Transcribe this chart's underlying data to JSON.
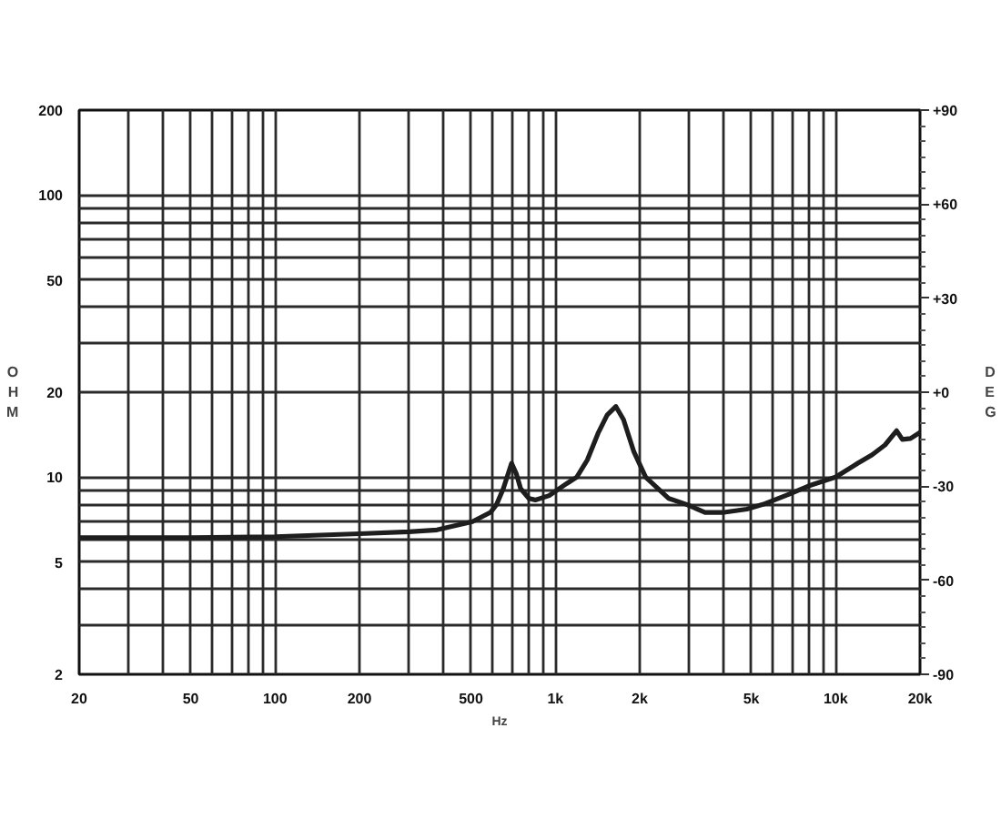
{
  "chart_data": {
    "type": "line",
    "xlabel": "Hz",
    "ylabel": "OHM",
    "y2label": "DEG",
    "log": "xy",
    "grid": true,
    "line_style": "solid",
    "xlim": [
      20,
      20000
    ],
    "ylim": [
      2,
      200
    ],
    "y2lim": [
      -90,
      90
    ],
    "xticks": [
      20,
      {
        "value": 30,
        "label": null
      },
      {
        "value": 40,
        "label": null
      },
      50,
      {
        "value": 60,
        "label": null
      },
      {
        "value": 70,
        "label": null
      },
      {
        "value": 80,
        "label": null
      },
      {
        "value": 90,
        "label": null
      },
      100,
      200,
      {
        "value": 300,
        "label": null
      },
      {
        "value": 400,
        "label": null
      },
      500,
      {
        "value": 600,
        "label": null
      },
      {
        "value": 700,
        "label": null
      },
      {
        "value": 800,
        "label": null
      },
      {
        "value": 900,
        "label": null
      },
      {
        "value": 1000,
        "label": "1k"
      },
      {
        "value": 2000,
        "label": "2k"
      },
      {
        "value": 3000,
        "label": null
      },
      {
        "value": 4000,
        "label": null
      },
      {
        "value": 5000,
        "label": "5k"
      },
      {
        "value": 6000,
        "label": null
      },
      {
        "value": 7000,
        "label": null
      },
      {
        "value": 8000,
        "label": null
      },
      {
        "value": 9000,
        "label": null
      },
      {
        "value": 10000,
        "label": "10k"
      },
      {
        "value": 20000,
        "label": "20k"
      }
    ],
    "yticks": [
      2,
      {
        "value": 3,
        "label": null
      },
      {
        "value": 4,
        "label": null
      },
      5,
      {
        "value": 6,
        "label": null
      },
      {
        "value": 7,
        "label": null
      },
      {
        "value": 8,
        "label": null
      },
      {
        "value": 9,
        "label": null
      },
      10,
      20,
      {
        "value": 30,
        "label": null
      },
      {
        "value": 40,
        "label": null
      },
      50,
      {
        "value": 60,
        "label": null
      },
      {
        "value": 70,
        "label": null
      },
      {
        "value": 80,
        "label": null
      },
      {
        "value": 90,
        "label": null
      },
      100,
      200
    ],
    "y2ticks": [
      {
        "value": -90,
        "label": "-90"
      },
      {
        "value": -85,
        "label": null
      },
      {
        "value": -80,
        "label": null
      },
      {
        "value": -75,
        "label": null
      },
      {
        "value": -70,
        "label": null
      },
      {
        "value": -65,
        "label": null
      },
      {
        "value": -60,
        "label": "-60"
      },
      {
        "value": -55,
        "label": null
      },
      {
        "value": -50,
        "label": null
      },
      {
        "value": -45,
        "label": null
      },
      {
        "value": -40,
        "label": null
      },
      {
        "value": -35,
        "label": null
      },
      {
        "value": -30,
        "label": "-30"
      },
      {
        "value": -25,
        "label": null
      },
      {
        "value": -20,
        "label": null
      },
      {
        "value": -15,
        "label": null
      },
      {
        "value": -10,
        "label": null
      },
      {
        "value": -5,
        "label": null
      },
      {
        "value": 0,
        "label": "+0"
      },
      {
        "value": 5,
        "label": null
      },
      {
        "value": 10,
        "label": null
      },
      {
        "value": 15,
        "label": null
      },
      {
        "value": 20,
        "label": null
      },
      {
        "value": 25,
        "label": null
      },
      {
        "value": 30,
        "label": "+30"
      },
      {
        "value": 35,
        "label": null
      },
      {
        "value": 40,
        "label": null
      },
      {
        "value": 45,
        "label": null
      },
      {
        "value": 50,
        "label": null
      },
      {
        "value": 55,
        "label": null
      },
      {
        "value": 60,
        "label": "+60"
      },
      {
        "value": 65,
        "label": null
      },
      {
        "value": 70,
        "label": null
      },
      {
        "value": 75,
        "label": null
      },
      {
        "value": 80,
        "label": null
      },
      {
        "value": 85,
        "label": null
      },
      {
        "value": 90,
        "label": "+90"
      }
    ],
    "x": [
      20,
      50,
      100,
      200,
      300,
      378,
      506,
      587,
      617,
      652,
      698,
      725,
      752,
      805,
      848,
      950,
      1100,
      1192,
      1300,
      1420,
      1530,
      1644,
      1750,
      1906,
      2100,
      2540,
      2940,
      3420,
      4000,
      4820,
      5500,
      6820,
      8000,
      10000,
      12000,
      13500,
      15000,
      16500,
      17300,
      18500,
      20000
    ],
    "series": [
      {
        "color": "#1e1e1e",
        "values": [
          6.1,
          6.1,
          6.15,
          6.3,
          6.4,
          6.5,
          6.95,
          7.5,
          8.0,
          9.1,
          11.2,
          10.3,
          9.1,
          8.4,
          8.3,
          8.6,
          9.5,
          10.0,
          11.5,
          14.3,
          16.6,
          17.8,
          16.0,
          12.3,
          10.0,
          8.4,
          8.0,
          7.5,
          7.5,
          7.7,
          8.0,
          8.7,
          9.3,
          10.0,
          11.2,
          12.0,
          13.0,
          14.6,
          13.6,
          13.7,
          14.4
        ]
      }
    ]
  }
}
